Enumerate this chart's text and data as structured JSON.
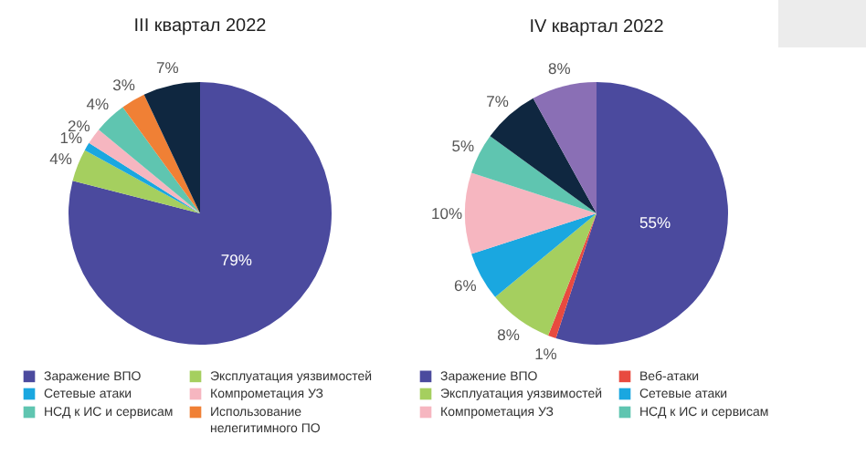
{
  "chart_data": [
    {
      "type": "pie",
      "title": "III квартал 2022",
      "categories": [
        "Заражение ВПО",
        "Эксплуатация уязвимостей",
        "Сетевые атаки",
        "Компрометация УЗ",
        "НСД к ИС и сервисам",
        "Использование нелегитимного ПО",
        null
      ],
      "values": [
        79,
        4,
        1,
        2,
        4,
        3,
        7
      ],
      "value_labels": [
        "79%",
        "4%",
        "1%",
        "2%",
        "4%",
        "3%",
        "7%"
      ],
      "colors": [
        "#4b4a9e",
        "#a5cf5f",
        "#1aa7e0",
        "#f6b6c0",
        "#5fc5b0",
        "#f08035",
        "#0f2740"
      ],
      "legend": "bottom"
    },
    {
      "type": "pie",
      "title": "IV квартал 2022",
      "categories": [
        "Заражение ВПО",
        "Веб-атаки",
        "Эксплуатация уязвимостей",
        "Сетевые атаки",
        "Компрометация УЗ",
        "НСД к ИС и сервисам",
        null,
        null
      ],
      "values": [
        55,
        1,
        8,
        6,
        10,
        5,
        7,
        8
      ],
      "value_labels": [
        "55%",
        "1%",
        "8%",
        "6%",
        "10%",
        "5%",
        "7%",
        "8%"
      ],
      "colors": [
        "#4b4a9e",
        "#e84a3f",
        "#a5cf5f",
        "#1aa7e0",
        "#f6b6c0",
        "#5fc5b0",
        "#0f2740",
        "#8a6fb5"
      ],
      "legend": "bottom"
    }
  ]
}
